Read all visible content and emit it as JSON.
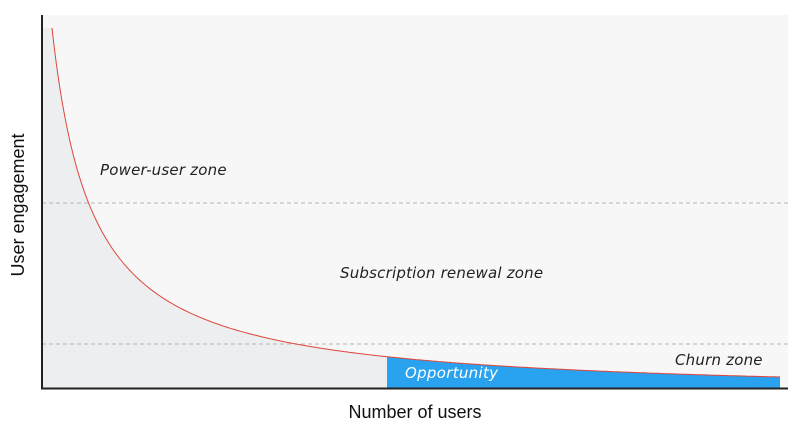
{
  "axes": {
    "x_label": "Number of users",
    "y_label": "User engagement"
  },
  "zones": {
    "power_user": "Power-user zone",
    "subscription_renewal": "Subscription renewal zone",
    "churn": "Churn zone",
    "opportunity": "Opportunity"
  },
  "colors": {
    "curve": "#e0453a",
    "plot_background": "#f7f7f7",
    "under_curve_fill": "#eceef0",
    "opportunity_fill": "#29a3ef",
    "threshold_line": "#b5b5b5",
    "axis": "#222222"
  }
}
